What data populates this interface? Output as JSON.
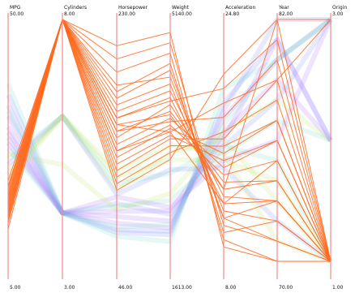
{
  "chart_data": {
    "type": "parallel_coordinates",
    "axes": [
      {
        "label": "MPG",
        "max_label": "50.00",
        "min_label": "5.00"
      },
      {
        "label": "Cylinders",
        "max_label": "8.00",
        "min_label": "3.00"
      },
      {
        "label": "Horsepower",
        "max_label": "230.00",
        "min_label": "46.00"
      },
      {
        "label": "Weight",
        "max_label": "5140.00",
        "min_label": "1613.00"
      },
      {
        "label": "Acceleration",
        "max_label": "24.80",
        "min_label": "8.00"
      },
      {
        "label": "Year",
        "max_label": "82.00",
        "min_label": "70.00"
      },
      {
        "label": "Origin",
        "max_label": "3.00",
        "min_label": "1.00"
      }
    ],
    "highlight_color": "#ff6a1f",
    "context_colors": [
      "#7b8cff",
      "#a86bff",
      "#6fd6c3",
      "#b7e36a"
    ],
    "records_highlighted": [
      [
        15,
        8,
        150,
        3500,
        12,
        73,
        1
      ],
      [
        14,
        8,
        165,
        4200,
        11,
        71,
        1
      ],
      [
        13,
        8,
        175,
        4500,
        10,
        72,
        1
      ],
      [
        16,
        8,
        140,
        3900,
        13,
        74,
        1
      ],
      [
        12,
        8,
        190,
        4650,
        9.5,
        70,
        1
      ],
      [
        17,
        8,
        130,
        3600,
        14,
        75,
        1
      ],
      [
        18,
        8,
        120,
        3450,
        15,
        76,
        1
      ],
      [
        11,
        8,
        210,
        4950,
        9,
        70,
        1
      ],
      [
        19,
        8,
        110,
        3300,
        16,
        77,
        1
      ],
      [
        14,
        8,
        160,
        4100,
        12.5,
        73,
        1
      ],
      [
        13,
        8,
        180,
        4300,
        11.5,
        72,
        1
      ],
      [
        15.5,
        8,
        145,
        3800,
        13.5,
        74,
        1
      ],
      [
        20,
        8,
        105,
        3200,
        17,
        78,
        1
      ],
      [
        16.5,
        8,
        135,
        3700,
        14.5,
        76,
        1
      ],
      [
        12.5,
        8,
        200,
        4800,
        10.5,
        71,
        1
      ],
      [
        17.5,
        8,
        125,
        3550,
        15.5,
        77,
        1
      ],
      [
        14.5,
        8,
        155,
        4000,
        12,
        75,
        1
      ],
      [
        13.5,
        8,
        170,
        4400,
        11,
        73,
        1
      ],
      [
        18.5,
        8,
        115,
        3400,
        16.5,
        79,
        1
      ],
      [
        15,
        8,
        150,
        3750,
        13,
        82,
        1
      ],
      [
        16,
        8,
        145,
        3650,
        18,
        80,
        1
      ],
      [
        14,
        8,
        155,
        3950,
        20,
        81,
        1
      ],
      [
        19,
        8,
        100,
        3100,
        21,
        82,
        3
      ],
      [
        17,
        8,
        130,
        3500,
        19,
        79,
        3
      ]
    ],
    "records_context": [
      [
        28,
        4,
        90,
        2300,
        16,
        78,
        3
      ],
      [
        32,
        4,
        75,
        2100,
        18,
        80,
        3
      ],
      [
        24,
        6,
        105,
        2900,
        16,
        75,
        1
      ],
      [
        22,
        6,
        110,
        3100,
        15,
        74,
        1
      ],
      [
        36,
        4,
        68,
        2000,
        19,
        81,
        2
      ],
      [
        30,
        4,
        80,
        2200,
        17,
        79,
        2
      ],
      [
        26,
        4,
        88,
        2500,
        15.5,
        77,
        2
      ],
      [
        21,
        6,
        100,
        3200,
        16.5,
        73,
        1
      ],
      [
        34,
        4,
        70,
        2050,
        18.5,
        82,
        3
      ],
      [
        27,
        4,
        95,
        2400,
        15,
        76,
        3
      ],
      [
        38,
        4,
        65,
        1900,
        20,
        80,
        3
      ],
      [
        25,
        5,
        85,
        2600,
        17,
        78,
        2
      ],
      [
        23,
        6,
        97,
        2950,
        14.5,
        72,
        1
      ],
      [
        29,
        4,
        84,
        2350,
        16.5,
        81,
        2
      ],
      [
        33,
        4,
        72,
        2150,
        17.5,
        80,
        3
      ],
      [
        20,
        6,
        115,
        3300,
        15.5,
        71,
        1
      ]
    ]
  }
}
